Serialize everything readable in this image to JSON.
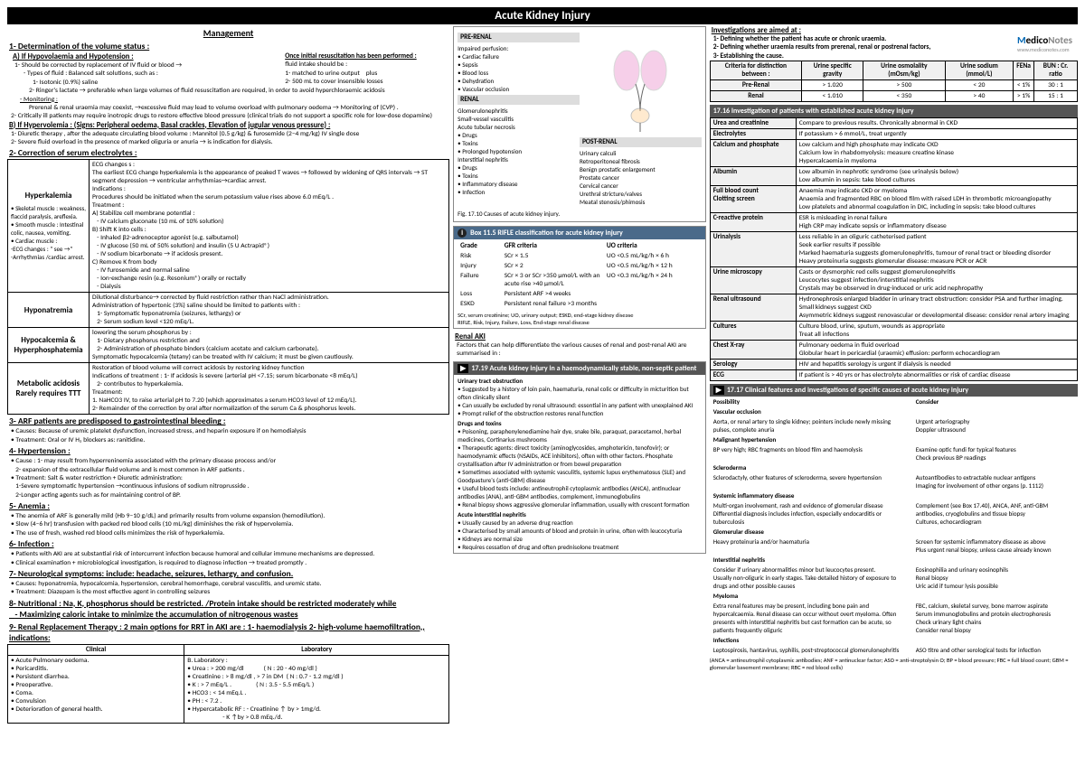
{
  "title": "Acute Kidney Injury",
  "logo": {
    "brand1": "M",
    "brand2": "edico",
    "brand3": "Notes",
    "url": "www.mediconotes.com"
  },
  "management": {
    "heading": "Management",
    "sec1": "1- Determination of the volume status :",
    "a_head": "A) If Hypovolaemia and Hypotension :",
    "a1": "1- Should be corrected by replacement of IV fluid or blood →",
    "a1_types": "- Types of fluid : Balanced salt solutions, such as :",
    "a1_t1": "1- Isotonic (0.9%) saline",
    "a1_t2": "2- Ringer's lactate → preferable when large volumes of fluid resuscitation are required, in order to avoid hyperchloraemic acidosis",
    "a1_mon": "- Monitoring :",
    "a1_mon_t": "Prerenal & renal uraemia may coexist, →excessive fluid may lead to volume overload with pulmonary oedema → Monitoring of (CVP) .",
    "a2": "2- Critically ill patients may require inotropic drugs to restore effective blood pressure (clinical trials do not support a specific role for low-dose dopamine)",
    "once_head": "Once initial resuscitation has been performed :",
    "once_body": "fluid intake should be :\n1- matched to urine output    plus\n2- 500 mL to cover insensible losses",
    "b_head": "B) If Hypervolemia : (Signs: Peripheral oedema, Basal crackles, Elevation of jugular venous pressure) :",
    "b1": "1- Diuretic therapy , after the adequate circulating blood volume : Mannitol (0.5 g/kg) & furosemide (2–4 mg/kg) IV single dose",
    "b2": "2- Severe fluid overload in the presence of marked oliguria or anuria → is indication for dialysis.",
    "sec2": "2- Correction of serum electrolytes :",
    "hyperk_title": "Hyperkalemia",
    "hyperk_left": "• Skeletal muscle : weakness, flaccid paralysis, areflexia.\n• Smooth muscle : Intestinal colic, nausea, vomiting.\n• Cardiac muscle :\n-ECG changes : \" see →\"\n-Arrhythmias /cardiac arrest.",
    "hyperk_right": "ECG changes s :\nThe earliest ECG change hyperkalemia is the appearance of peaked T waves → followed by widening of QRS intervals → ST segment depression → ventricular arrhythmias→cardiac arrest.\nIndications :\nProcedures should be initiated when the serum potassium value rises above 6.0 mEq/L .\nTreatment :\nA) Stabilize cell membrane potential :\n   - IV calcium gluconate (10 mL of 10% solution)\nB) Shift K into cells :\n   - Inhaled β2-adrenoceptor agonist (e.g. salbutamol)\n   - IV glucose (50 mL of 50% solution) and insulin (5 U Actrapid®)\n   - IV sodium bicarbonate → if acidosis present.\nC) Remove K from body\n   - IV furosemide and normal saline\n   - Ion-exchange resin (e.g. Resonium®) orally or rectally\n   - Dialysis",
    "hypon_title": "Hyponatremia",
    "hypon_body": "Dilutional disturbance→ corrected by fluid restriction rather than NaCl administration.\nAdministration of hypertonic (3%) saline should be limited to patients with :\n   1- Symptomatic hyponatremia (seizures, lethargy) or\n   2- Serum sodium level <120 mEq/L.",
    "hypoc_title": "Hypocalcemia & Hyperphosphatemia",
    "hypoc_body": "lowering the serum phosphorus by :\n   1- Dietary phosphorus restriction and\n   2- Administration of phosphate binders (calcium acetate and calcium carbonate).\nSymptomatic hypocalcemia (tetany) can be treated with IV calcium; it must be given cautiously.",
    "metab_title": "Metabolic acidosis\nRarely requires TTT",
    "metab_body": "Restoration of blood volume will correct acidosis by restoring kidney function\nIndications of treatment : 1- If acidosis is severe (arterial pH <7.15; serum bicarbonate <8 mEq/L)\n   2- contributes to hyperkalemia.\nTreatment:\n1. NaHCO3 IV, to raise arterial pH to 7.20 (which approximates a serum HCO3 level of 12 mEq/L).\n2- Remainder of the correction by oral after normalization of the serum Ca & phosphorus levels.",
    "sec3": "3- ARF patients are predisposed to gastrointestinal bleeding :",
    "sec3_c": "• Causes: Because of uremic platelet dysfunction, increased stress, and heparin exposure if on hemodialysis",
    "sec3_t": "• Treatment: Oral or IV H₂ blockers as: ranitidine.",
    "sec4": "4- Hypertension :",
    "sec4_c": "• Cause : 1- may result from hyperreninemia associated with the primary disease process and/or\n   2- expansion of the extracellular fluid volume and is most common in ARF patients .",
    "sec4_t": "• Treatment: Salt & water restriction + Diuretic administration:\n   1-Severe symptomatic hypertension →continuous infusions of sodium nitroprusside .\n   2-Longer acting agents such as for maintaining control of BP.",
    "sec5": "5- Anemia :",
    "sec5_b": "• The anemia of ARF is generally mild (Hb 9–10 g/dL) and primarily results from volume expansion (hemodilution).\n• Slow (4–6 hr) transfusion with packed red blood cells (10 mL/kg) diminishes the risk of hypervolemia.\n• The use of fresh, washed red blood cells minimizes the risk of hyperkalemia.",
    "sec6": "6- Infection :",
    "sec6_b": "• Patients with AKI are at substantial risk of intercurrent infection because humoral and cellular immune mechanisms are depressed.\n• Clinical examination + microbiological investigation, is required to diagnose infection → treated promptly .",
    "sec7": "7- Neurological symptoms: include: headache, seizures, lethargy, and confusion.",
    "sec7_b": "• Causes: hyponatremia, hypocalcemia, hypertension, cerebral hemorrhage, cerebral vasculitis, and uremic state.\n• Treatment: Diazepam is the most effective agent in controlling seizures",
    "sec8": "8- Nutritional : Na, K, phosphorus should be restricted. /Protein intake should be restricted moderately while\n   - Maximizing caloric intake to minimize the accumulation of nitrogenous wastes",
    "sec9": "9- Renal Replacement Therapy : 2 main options for RRT in AKI are : 1- haemodialysis  2- high-volume haemofiltration,, indications:",
    "rrt_clin_h": "Clinical",
    "rrt_lab_h": "Laboratory",
    "rrt_clin": "• Acute Pulmonary oedema.\n• Pericarditis.\n• Persistent diarrhea.\n• Preoperative.\n• Coma.\n• Convulsion\n• Deterioration of general health.",
    "rrt_lab": "B. Laboratory :\n• Urea : > 200 mg/dl             ( N : 20 - 40 mg/dl )\n• Creatinine : > 8 mg/dl , > 7 in DM  ( N : 0.7 - 1.2 mg/dl )\n• K : > 7 mEq/L .                ( N : 3.5 - 5.5 mEq/L )\n• HCO3 : < 14 mEq.L .\n• PH : < 7.2 .\n• Hypercatabolic RF : - Creatinine ↑ by > 1mg/d.\n                       - K ↑by > 0.8 mEq./d.",
    "kidney": {
      "prerenal_h": "PRE-RENAL",
      "prerenal": "Impaired perfusion:\n• Cardiac failure\n• Sepsis\n• Blood loss\n• Dehydration\n• Vascular occlusion",
      "renal_h": "RENAL",
      "renal": "Glomerulonephritis\nSmall-vessel vasculitis\nAcute tubular necrosis\n• Drugs\n• Toxins\n• Prolonged hypotension\nInterstitial nephritis\n• Drugs\n• Toxins\n• Inflammatory disease\n• Infection",
      "postrenal_h": "POST-RENAL",
      "postrenal": "Urinary calculi\nRetroperitoneal fibrosis\nBenign prostatic enlargement\nProstate cancer\nCervical cancer\nUrethral stricture/valves\nMeatal stenosis/phimosis",
      "caption": "Fig. 17.10 Causes of acute kidney injury."
    },
    "rifle_title": "Box 11.5  RIFLE classification for acute kidney injury",
    "rifle_cols": [
      "Grade",
      "GFR criteria",
      "UO criteria"
    ],
    "rifle_rows": [
      [
        "Risk",
        "SCr × 1.5",
        "UO <0.5 mL/kg/h × 6 h"
      ],
      [
        "Injury",
        "SCr × 2",
        "UO <0.5 mL/kg/h × 12 h"
      ],
      [
        "Failure",
        "SCr × 3 or SCr >350 µmol/L with an acute rise >40 µmol/L",
        "UO <0.3 mL/kg/h × 24 h"
      ],
      [
        "Loss",
        "Persistent ARF >4 weeks",
        ""
      ],
      [
        "ESKD",
        "Persistent renal failure >3 months",
        ""
      ]
    ],
    "rifle_foot": "SCr, serum creatinine; UO, urinary output; ESKD, end-stage kidney disease\nRIFLE, Risk, Injury, Failure, Loss, End-stage renal disease",
    "renal_aki_h": "Renal AKI",
    "renal_aki_b": "Factors that can help differentiate the various causes of renal and post-renal AKI are summarised in :",
    "box1719_h": "17.19 Acute kidney injury in a haemodynamically stable, non-septic patient",
    "box1719_uto_h": "Urinary tract obstruction",
    "box1719_uto": "• Suggested by a history of loin pain, haematuria, renal colic or difficulty in micturition but often clinically silent\n• Can usually be excluded by renal ultrasound: essential in any patient with unexplained AKI\n• Prompt relief of the obstruction restores renal function",
    "box1719_dt_h": "Drugs and toxins",
    "box1719_dt": "• Poisoning, paraphenylenediamine hair dye, snake bile, paraquat, paracetamol, herbal medicines, Cortinarius mushrooms\n• Therapeutic agents: direct toxicity (aminoglycosides, amphotericin, tenofovir); or haemodynamic effects (NSAIDs, ACE inhibitors), often with other factors. Phosphate crystallisation after IV administration or from bowel preparation\n• Sometimes associated with systemic vasculitis, systemic lupus erythematosus (SLE) and Goodpasture's (anti-GBM) disease\n• Useful blood tests include: antineutrophil cytoplasmic antibodies (ANCA), antinuclear antibodies (ANA), anti-GBM antibodies, complement, immunoglobulins\n• Renal biopsy shows aggressive glomerular inflammation, usually with crescent formation",
    "box1719_ain_h": "Acute interstitial nephritis",
    "box1719_ain": "• Usually caused by an adverse drug reaction\n• Characterised by small amounts of blood and protein in urine, often with leucocyturia\n• Kidneys are normal size\n• Requires cessation of drug and often prednisolone treatment"
  },
  "investigations": {
    "head": "Investigations are aimed at :",
    "aims": "1- Defining whether the patient has acute or chronic uraemia.\n2- Defining whether uraemia results from prerenal, renal or postrenal factors,\n3- Establishing the cause.",
    "crit_head": [
      "Criteria for distinction between :",
      "Urine specific gravity",
      "Urine osmolality (mOsm/kg)",
      "Urine sodium (mmol/L)",
      "FENa",
      "BUN : Cr. ratio"
    ],
    "crit_rows": [
      [
        "Pre-Renal",
        "> 1.020",
        "> 500",
        "< 20",
        "< 1%",
        "30 : 1"
      ],
      [
        "Renal",
        "< 1.010",
        "< 350",
        "> 40",
        "> 1%",
        "15 : 1"
      ]
    ],
    "inv_title": "17.16 Investigation of patients with established acute kidney injury",
    "inv_rows": [
      [
        "Urea and creatinine",
        "Compare to previous results. Chronically abnormal in CKD"
      ],
      [
        "Electrolytes",
        "If potassium > 6 mmol/L, treat urgently"
      ],
      [
        "Calcium and phosphate",
        "Low calcium and high phosphate may indicate CKD\nCalcium low in rhabdomyolysis: measure creatine kinase\nHypercalcaemia in myeloma"
      ],
      [
        "Albumin",
        "Low albumin in nephrotic syndrome (see urinalysis below)\nLow albumin in sepsis: take blood cultures"
      ],
      [
        "Full blood count\nClotting screen",
        "Anaemia may indicate CKD or myeloma\nAnaemia and fragmented RBC on blood film with raised LDH in thrombotic microangiopathy\nLow platelets and abnormal coagulation in DIC, including in sepsis: take blood cultures"
      ],
      [
        "C-reactive protein",
        "ESR is misleading in renal failure\nHigh CRP may indicate sepsis or inflammatory disease"
      ],
      [
        "Urinalysis",
        "Less reliable in an oliguric catheterised patient\nSeek earlier results if possible\nMarked haematuria suggests glomerulonephritis, tumour of renal tract or bleeding disorder\nHeavy proteinuria suggests glomerular disease: measure PCR or ACR"
      ],
      [
        "Urine microscopy",
        "Casts or dysmorphic red cells suggest glomerulonephritis\nLeucocytes suggest infection/interstitial nephritis\nCrystals may be observed in drug-induced or uric acid nephropathy"
      ],
      [
        "Renal ultrasound",
        "Hydronephrosis enlarged bladder in urinary tract obstruction: consider PSA and further imaging.\nSmall kidneys suggest CKD\nAsymmetric kidneys suggest renovascular or developmental disease: consider renal artery imaging"
      ],
      [
        "Cultures",
        "Culture blood, urine, sputum, wounds as appropriate\nTreat all infections"
      ],
      [
        "Chest X-ray",
        "Pulmonary oedema in fluid overload\nGlobular heart in pericardial (uraemic) effusion: perform echocardiogram"
      ],
      [
        "Serology",
        "HIV and hepatitis serology is urgent if dialysis is needed"
      ],
      [
        "ECG",
        "If patient is > 40 yrs or has electrolyte abnormalities or risk of cardiac disease"
      ]
    ],
    "clinfeat_title": "17.17 Clinical features and investigations of specific causes of acute kidney injury",
    "clinfeat_cols": [
      "Possibility",
      "Consider"
    ],
    "clinfeat_rows": [
      [
        "Vascular occlusion",
        "",
        "Aorta, or renal artery to single kidney; pointers include newly missing pulses, complete anuria",
        "Urgent arteriography\nDoppler ultrasound"
      ],
      [
        "Malignant hypertension",
        "",
        "BP very high; RBC fragments on blood film and haemolysis",
        "Examine optic fundi for typical features\nCheck previous BP readings"
      ],
      [
        "Scleroderma",
        "",
        "Sclerodactyly, other features of scleroderma, severe hypertension",
        "Autoantibodies to extractable nuclear antigens\nImaging for involvement of other organs (p. 1112)"
      ],
      [
        "Systemic inflammatory disease",
        "",
        "Multi-organ involvement, rash and evidence of glomerular disease\nDifferential diagnosis includes infection, especially endocarditis or tuberculosis",
        "Complement (see Box 17.40), ANCA, ANF, anti-GBM antibodies, cryoglobulins and tissue biopsy\nCultures, echocardiogram"
      ],
      [
        "Glomerular disease",
        "",
        "Heavy proteinuria and/or haematuria",
        "Screen for systemic inflammatory disease as above\nPlus urgent renal biopsy, unless cause already known"
      ],
      [
        "Interstitial nephritis",
        "",
        "Consider if urinary abnormalities minor but leucocytes present.\nUsually non-oliguric in early stages. Take detailed history of exposure to drugs and other possible causes",
        "Eosinophilia and urinary eosinophils\nRenal biopsy\nUric acid if tumour lysis possible"
      ],
      [
        "Myeloma",
        "",
        "Extra renal features may be present, including bone pain and hypercalcaemia. Renal disease can occur without overt myeloma. Often presents with interstitial nephritis but cast formation can be acute, so patients frequently oliguric",
        "FBC, calcium, skeletal survey, bone marrow aspirate\nSerum immunoglobulins and protein electrophoresis\nCheck urinary light chains\nConsider renal biopsy"
      ],
      [
        "Infections",
        "",
        "Leptospirosis, hantavirus, syphilis, post-streptococcal glomerulonephritis",
        "ASO titre and other serological tests for infection"
      ]
    ],
    "clinfeat_foot": "(ANCA = antineutrophil cytoplasmic antibodies; ANF = antinuclear factor; ASO = anti-streptolysin O; BP = blood pressure; FBC = full blood count; GBM = glomerular basement membrane; RBC = red blood cells)"
  }
}
